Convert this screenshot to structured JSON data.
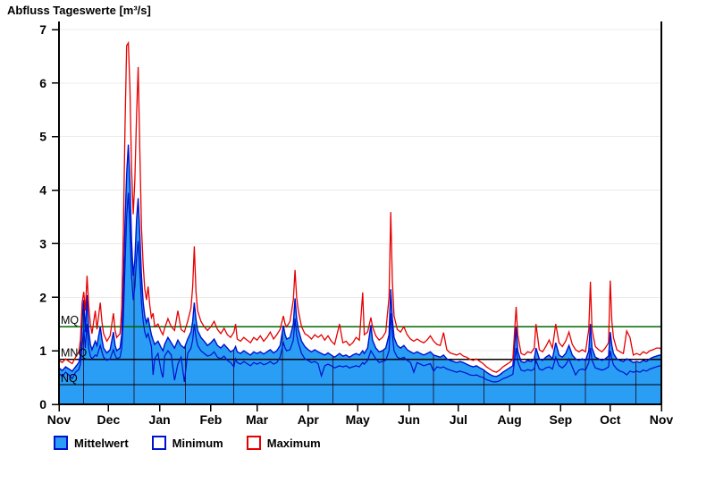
{
  "title": "Abfluss Tageswerte [m³/s]",
  "legend": {
    "items": [
      {
        "label": "Mittelwert",
        "fill": "#2A9DF4",
        "border": "#0010CC"
      },
      {
        "label": "Minimum",
        "fill": "#FFFFFF",
        "border": "#0010CC"
      },
      {
        "label": "Maximum",
        "fill": "#FFFFFF",
        "border": "#E60000"
      }
    ]
  },
  "chart_data": {
    "type": "area",
    "title": "Abfluss Tageswerte [m³/s]",
    "ylabel": "",
    "y_axis": {
      "ylim": [
        0,
        7
      ],
      "ticks": [
        0,
        1,
        2,
        3,
        4,
        5,
        6,
        7
      ]
    },
    "x_axis": {
      "labels": [
        "Nov",
        "Dec",
        "Jan",
        "Feb",
        "Mar",
        "Apr",
        "May",
        "Jun",
        "Jul",
        "Aug",
        "Sep",
        "Oct",
        "Nov"
      ],
      "boundaries_days": [
        0,
        30,
        61,
        92,
        120,
        151,
        181,
        212,
        242,
        273,
        304,
        334,
        365
      ],
      "range_days": [
        0,
        365
      ]
    },
    "grid": {
      "horizontal": true,
      "vertical": "mid-month"
    },
    "reference_lines": [
      {
        "label": "MQ",
        "value": 1.45,
        "color": "#006600"
      },
      {
        "label": "MNQ",
        "value": 0.84,
        "color": "#000000"
      },
      {
        "label": "NQ",
        "value": 0.37,
        "color": "#000000"
      }
    ],
    "series": [
      {
        "name": "Mittelwert",
        "role": "mean",
        "style": "filled-area",
        "fill": "#2A9DF4",
        "line": "#0010CC"
      },
      {
        "name": "Minimum",
        "role": "min",
        "style": "line",
        "line": "#0010CC"
      },
      {
        "name": "Maximum",
        "role": "max",
        "style": "line",
        "line": "#E60000"
      }
    ],
    "colors": {
      "h_grid": "#ebebeb",
      "v_grid": "#232348",
      "frame": "#000000"
    },
    "points_format": [
      "day",
      "mean",
      "min",
      "max"
    ],
    "points": [
      [
        0,
        0.68,
        0.58,
        0.82
      ],
      [
        2,
        0.63,
        0.52,
        0.78
      ],
      [
        4,
        0.7,
        0.6,
        0.85
      ],
      [
        6,
        0.66,
        0.55,
        0.8
      ],
      [
        8,
        0.62,
        0.48,
        0.76
      ],
      [
        10,
        0.7,
        0.6,
        0.88
      ],
      [
        12,
        0.78,
        0.65,
        0.98
      ],
      [
        13,
        0.92,
        0.75,
        1.2
      ],
      [
        14,
        1.6,
        1.1,
        1.9
      ],
      [
        15,
        1.95,
        1.4,
        2.1
      ],
      [
        16,
        1.35,
        1.05,
        1.75
      ],
      [
        17,
        2.04,
        1.5,
        2.4
      ],
      [
        18,
        1.4,
        1.05,
        1.85
      ],
      [
        19,
        1.12,
        0.9,
        1.5
      ],
      [
        20,
        1.02,
        0.85,
        1.32
      ],
      [
        22,
        1.18,
        0.92,
        1.75
      ],
      [
        23,
        1.1,
        0.9,
        1.4
      ],
      [
        25,
        1.45,
        1.1,
        1.9
      ],
      [
        26,
        1.22,
        0.98,
        1.55
      ],
      [
        27,
        1.05,
        0.88,
        1.32
      ],
      [
        29,
        0.96,
        0.82,
        1.18
      ],
      [
        31,
        1.02,
        0.85,
        1.28
      ],
      [
        33,
        1.35,
        1.02,
        1.7
      ],
      [
        34,
        1.1,
        0.92,
        1.38
      ],
      [
        35,
        1.0,
        0.85,
        1.25
      ],
      [
        37,
        1.05,
        0.88,
        1.32
      ],
      [
        38,
        1.3,
        1.05,
        1.8
      ],
      [
        39,
        2.2,
        1.6,
        3.2
      ],
      [
        40,
        3.4,
        2.6,
        5.2
      ],
      [
        41,
        4.3,
        3.5,
        6.7
      ],
      [
        42,
        4.85,
        3.95,
        6.75
      ],
      [
        43,
        4.15,
        3.3,
        5.9
      ],
      [
        44,
        3.05,
        2.4,
        4.4
      ],
      [
        45,
        2.4,
        1.95,
        3.55
      ],
      [
        46,
        2.7,
        2.2,
        4.2
      ],
      [
        47,
        3.45,
        2.75,
        5.4
      ],
      [
        48,
        3.85,
        3.05,
        6.3
      ],
      [
        49,
        3.15,
        2.5,
        4.7
      ],
      [
        50,
        2.4,
        1.9,
        3.3
      ],
      [
        51,
        1.9,
        1.55,
        2.6
      ],
      [
        52,
        1.65,
        1.35,
        2.15
      ],
      [
        53,
        1.52,
        1.25,
        1.95
      ],
      [
        54,
        1.62,
        1.32,
        2.2
      ],
      [
        55,
        1.45,
        1.2,
        1.85
      ],
      [
        56,
        1.3,
        1.08,
        1.62
      ],
      [
        57,
        1.2,
        0.55,
        1.7
      ],
      [
        58,
        1.12,
        0.85,
        1.45
      ],
      [
        60,
        1.18,
        0.95,
        1.5
      ],
      [
        62,
        1.05,
        0.6,
        1.35
      ],
      [
        63,
        1.0,
        0.5,
        1.3
      ],
      [
        64,
        1.12,
        0.9,
        1.42
      ],
      [
        66,
        1.25,
        1.0,
        1.6
      ],
      [
        68,
        1.15,
        0.92,
        1.45
      ],
      [
        70,
        1.05,
        0.45,
        1.38
      ],
      [
        72,
        1.2,
        0.75,
        1.75
      ],
      [
        74,
        1.1,
        0.88,
        1.4
      ],
      [
        76,
        1.05,
        0.42,
        1.35
      ],
      [
        78,
        1.22,
        0.95,
        1.55
      ],
      [
        80,
        1.35,
        1.05,
        1.8
      ],
      [
        81,
        1.55,
        1.2,
        2.2
      ],
      [
        82,
        1.9,
        1.5,
        2.95
      ],
      [
        83,
        1.58,
        1.25,
        2.1
      ],
      [
        84,
        1.38,
        1.1,
        1.75
      ],
      [
        86,
        1.25,
        1.0,
        1.55
      ],
      [
        88,
        1.18,
        0.95,
        1.45
      ],
      [
        90,
        1.1,
        0.9,
        1.38
      ],
      [
        92,
        1.15,
        0.92,
        1.45
      ],
      [
        94,
        1.22,
        0.98,
        1.55
      ],
      [
        96,
        1.1,
        0.88,
        1.4
      ],
      [
        98,
        1.05,
        0.85,
        1.32
      ],
      [
        100,
        1.12,
        0.9,
        1.42
      ],
      [
        102,
        1.05,
        0.82,
        1.3
      ],
      [
        104,
        0.98,
        0.78,
        1.25
      ],
      [
        106,
        1.02,
        0.7,
        1.35
      ],
      [
        107,
        1.08,
        0.85,
        1.5
      ],
      [
        108,
        0.98,
        0.78,
        1.22
      ],
      [
        110,
        0.95,
        0.75,
        1.18
      ],
      [
        112,
        1.0,
        0.8,
        1.25
      ],
      [
        114,
        0.96,
        0.76,
        1.2
      ],
      [
        116,
        0.92,
        0.72,
        1.15
      ],
      [
        118,
        0.98,
        0.78,
        1.25
      ],
      [
        120,
        0.95,
        0.75,
        1.2
      ],
      [
        122,
        0.98,
        0.78,
        1.28
      ],
      [
        124,
        0.94,
        0.74,
        1.18
      ],
      [
        126,
        0.98,
        0.76,
        1.25
      ],
      [
        128,
        1.02,
        0.8,
        1.35
      ],
      [
        130,
        0.96,
        0.75,
        1.22
      ],
      [
        132,
        1.0,
        0.78,
        1.3
      ],
      [
        134,
        1.1,
        0.88,
        1.4
      ],
      [
        136,
        1.47,
        1.15,
        1.65
      ],
      [
        137,
        1.3,
        1.05,
        1.5
      ],
      [
        138,
        1.22,
        1.0,
        1.45
      ],
      [
        140,
        1.25,
        1.02,
        1.55
      ],
      [
        142,
        1.5,
        1.2,
        1.95
      ],
      [
        143,
        1.98,
        1.6,
        2.51
      ],
      [
        144,
        1.6,
        1.3,
        2.0
      ],
      [
        145,
        1.4,
        1.15,
        1.75
      ],
      [
        147,
        1.18,
        0.95,
        1.45
      ],
      [
        149,
        1.08,
        0.85,
        1.32
      ],
      [
        151,
        1.02,
        0.82,
        1.28
      ],
      [
        153,
        0.98,
        0.78,
        1.22
      ],
      [
        155,
        1.02,
        0.8,
        1.3
      ],
      [
        157,
        0.98,
        0.76,
        1.25
      ],
      [
        159,
        0.95,
        0.53,
        1.3
      ],
      [
        161,
        0.92,
        0.72,
        1.2
      ],
      [
        163,
        0.96,
        0.75,
        1.28
      ],
      [
        165,
        0.92,
        0.72,
        1.18
      ],
      [
        167,
        0.88,
        0.68,
        1.12
      ],
      [
        170,
        0.95,
        0.72,
        1.5
      ],
      [
        172,
        0.9,
        0.7,
        1.15
      ],
      [
        174,
        0.92,
        0.72,
        1.18
      ],
      [
        176,
        0.88,
        0.68,
        1.1
      ],
      [
        178,
        0.92,
        0.7,
        1.15
      ],
      [
        180,
        0.95,
        0.72,
        1.25
      ],
      [
        182,
        0.92,
        0.7,
        1.2
      ],
      [
        184,
        1.0,
        0.78,
        2.09
      ],
      [
        185,
        0.95,
        0.75,
        1.3
      ],
      [
        187,
        1.05,
        0.82,
        1.35
      ],
      [
        189,
        1.48,
        1.0,
        1.62
      ],
      [
        190,
        1.2,
        0.95,
        1.45
      ],
      [
        192,
        1.05,
        0.85,
        1.28
      ],
      [
        194,
        0.98,
        0.78,
        1.2
      ],
      [
        196,
        1.0,
        0.8,
        1.25
      ],
      [
        198,
        1.05,
        0.82,
        1.35
      ],
      [
        200,
        1.3,
        1.0,
        2.0
      ],
      [
        201,
        2.15,
        1.7,
        3.59
      ],
      [
        202,
        1.6,
        1.3,
        2.3
      ],
      [
        203,
        1.25,
        1.0,
        1.65
      ],
      [
        205,
        1.1,
        0.88,
        1.4
      ],
      [
        207,
        1.05,
        0.85,
        1.35
      ],
      [
        209,
        1.1,
        0.88,
        1.45
      ],
      [
        211,
        1.02,
        0.82,
        1.3
      ],
      [
        213,
        0.98,
        0.78,
        1.22
      ],
      [
        215,
        0.95,
        0.6,
        1.18
      ],
      [
        217,
        0.98,
        0.78,
        1.22
      ],
      [
        219,
        0.95,
        0.75,
        1.18
      ],
      [
        221,
        0.92,
        0.72,
        1.15
      ],
      [
        223,
        0.95,
        0.74,
        1.2
      ],
      [
        225,
        0.98,
        0.76,
        1.28
      ],
      [
        227,
        0.92,
        0.62,
        1.18
      ],
      [
        229,
        0.9,
        0.7,
        1.12
      ],
      [
        231,
        0.88,
        0.68,
        1.1
      ],
      [
        233,
        0.92,
        0.7,
        1.34
      ],
      [
        235,
        0.85,
        0.66,
        1.02
      ],
      [
        237,
        0.82,
        0.64,
        0.96
      ],
      [
        239,
        0.8,
        0.62,
        0.94
      ],
      [
        241,
        0.78,
        0.6,
        0.92
      ],
      [
        243,
        0.8,
        0.62,
        0.95
      ],
      [
        245,
        0.78,
        0.6,
        0.9
      ],
      [
        247,
        0.75,
        0.58,
        0.88
      ],
      [
        249,
        0.72,
        0.55,
        0.84
      ],
      [
        251,
        0.7,
        0.54,
        0.82
      ],
      [
        253,
        0.72,
        0.55,
        0.85
      ],
      [
        255,
        0.68,
        0.52,
        0.8
      ],
      [
        257,
        0.65,
        0.5,
        0.76
      ],
      [
        259,
        0.6,
        0.46,
        0.7
      ],
      [
        261,
        0.56,
        0.44,
        0.66
      ],
      [
        263,
        0.53,
        0.42,
        0.62
      ],
      [
        265,
        0.52,
        0.42,
        0.6
      ],
      [
        267,
        0.55,
        0.44,
        0.64
      ],
      [
        269,
        0.6,
        0.48,
        0.7
      ],
      [
        271,
        0.64,
        0.5,
        0.74
      ],
      [
        273,
        0.68,
        0.53,
        0.78
      ],
      [
        275,
        0.72,
        0.56,
        0.84
      ],
      [
        277,
        1.45,
        1.05,
        1.82
      ],
      [
        278,
        1.0,
        0.8,
        1.3
      ],
      [
        280,
        0.8,
        0.64,
        0.95
      ],
      [
        282,
        0.78,
        0.62,
        0.92
      ],
      [
        284,
        0.82,
        0.65,
        0.98
      ],
      [
        286,
        0.8,
        0.63,
        0.96
      ],
      [
        288,
        0.85,
        0.66,
        1.05
      ],
      [
        289,
        1.05,
        0.82,
        1.5
      ],
      [
        291,
        0.85,
        0.66,
        1.02
      ],
      [
        293,
        0.82,
        0.64,
        0.98
      ],
      [
        295,
        0.88,
        0.68,
        1.08
      ],
      [
        297,
        0.92,
        0.7,
        1.2
      ],
      [
        299,
        0.85,
        0.66,
        1.05
      ],
      [
        301,
        1.15,
        0.88,
        1.5
      ],
      [
        303,
        0.92,
        0.72,
        1.15
      ],
      [
        305,
        0.88,
        0.68,
        1.08
      ],
      [
        307,
        0.95,
        0.74,
        1.18
      ],
      [
        309,
        1.1,
        0.85,
        1.35
      ],
      [
        311,
        0.92,
        0.7,
        1.12
      ],
      [
        313,
        0.85,
        0.55,
        1.02
      ],
      [
        315,
        0.82,
        0.64,
        0.98
      ],
      [
        317,
        0.85,
        0.66,
        1.02
      ],
      [
        319,
        0.82,
        0.64,
        0.98
      ],
      [
        321,
        1.0,
        0.78,
        1.4
      ],
      [
        322,
        1.5,
        1.05,
        2.29
      ],
      [
        323,
        1.05,
        0.82,
        1.4
      ],
      [
        325,
        0.88,
        0.68,
        1.08
      ],
      [
        327,
        0.85,
        0.66,
        1.02
      ],
      [
        329,
        0.82,
        0.64,
        0.98
      ],
      [
        331,
        0.85,
        0.66,
        1.05
      ],
      [
        333,
        0.9,
        0.7,
        1.15
      ],
      [
        334,
        1.35,
        1.0,
        2.31
      ],
      [
        335,
        1.1,
        0.85,
        1.55
      ],
      [
        336,
        0.95,
        0.74,
        1.25
      ],
      [
        338,
        0.85,
        0.66,
        1.02
      ],
      [
        340,
        0.82,
        0.62,
        0.98
      ],
      [
        342,
        0.8,
        0.6,
        0.95
      ],
      [
        344,
        0.85,
        0.55,
        1.37
      ],
      [
        346,
        0.82,
        0.62,
        1.25
      ],
      [
        348,
        0.78,
        0.6,
        0.92
      ],
      [
        350,
        0.8,
        0.62,
        0.95
      ],
      [
        352,
        0.78,
        0.6,
        0.92
      ],
      [
        354,
        0.82,
        0.64,
        0.98
      ],
      [
        356,
        0.8,
        0.62,
        0.95
      ],
      [
        358,
        0.85,
        0.66,
        1.0
      ],
      [
        360,
        0.88,
        0.68,
        1.02
      ],
      [
        362,
        0.9,
        0.7,
        1.05
      ],
      [
        364,
        0.92,
        0.72,
        1.05
      ],
      [
        365,
        0.9,
        0.71,
        1.02
      ]
    ]
  }
}
